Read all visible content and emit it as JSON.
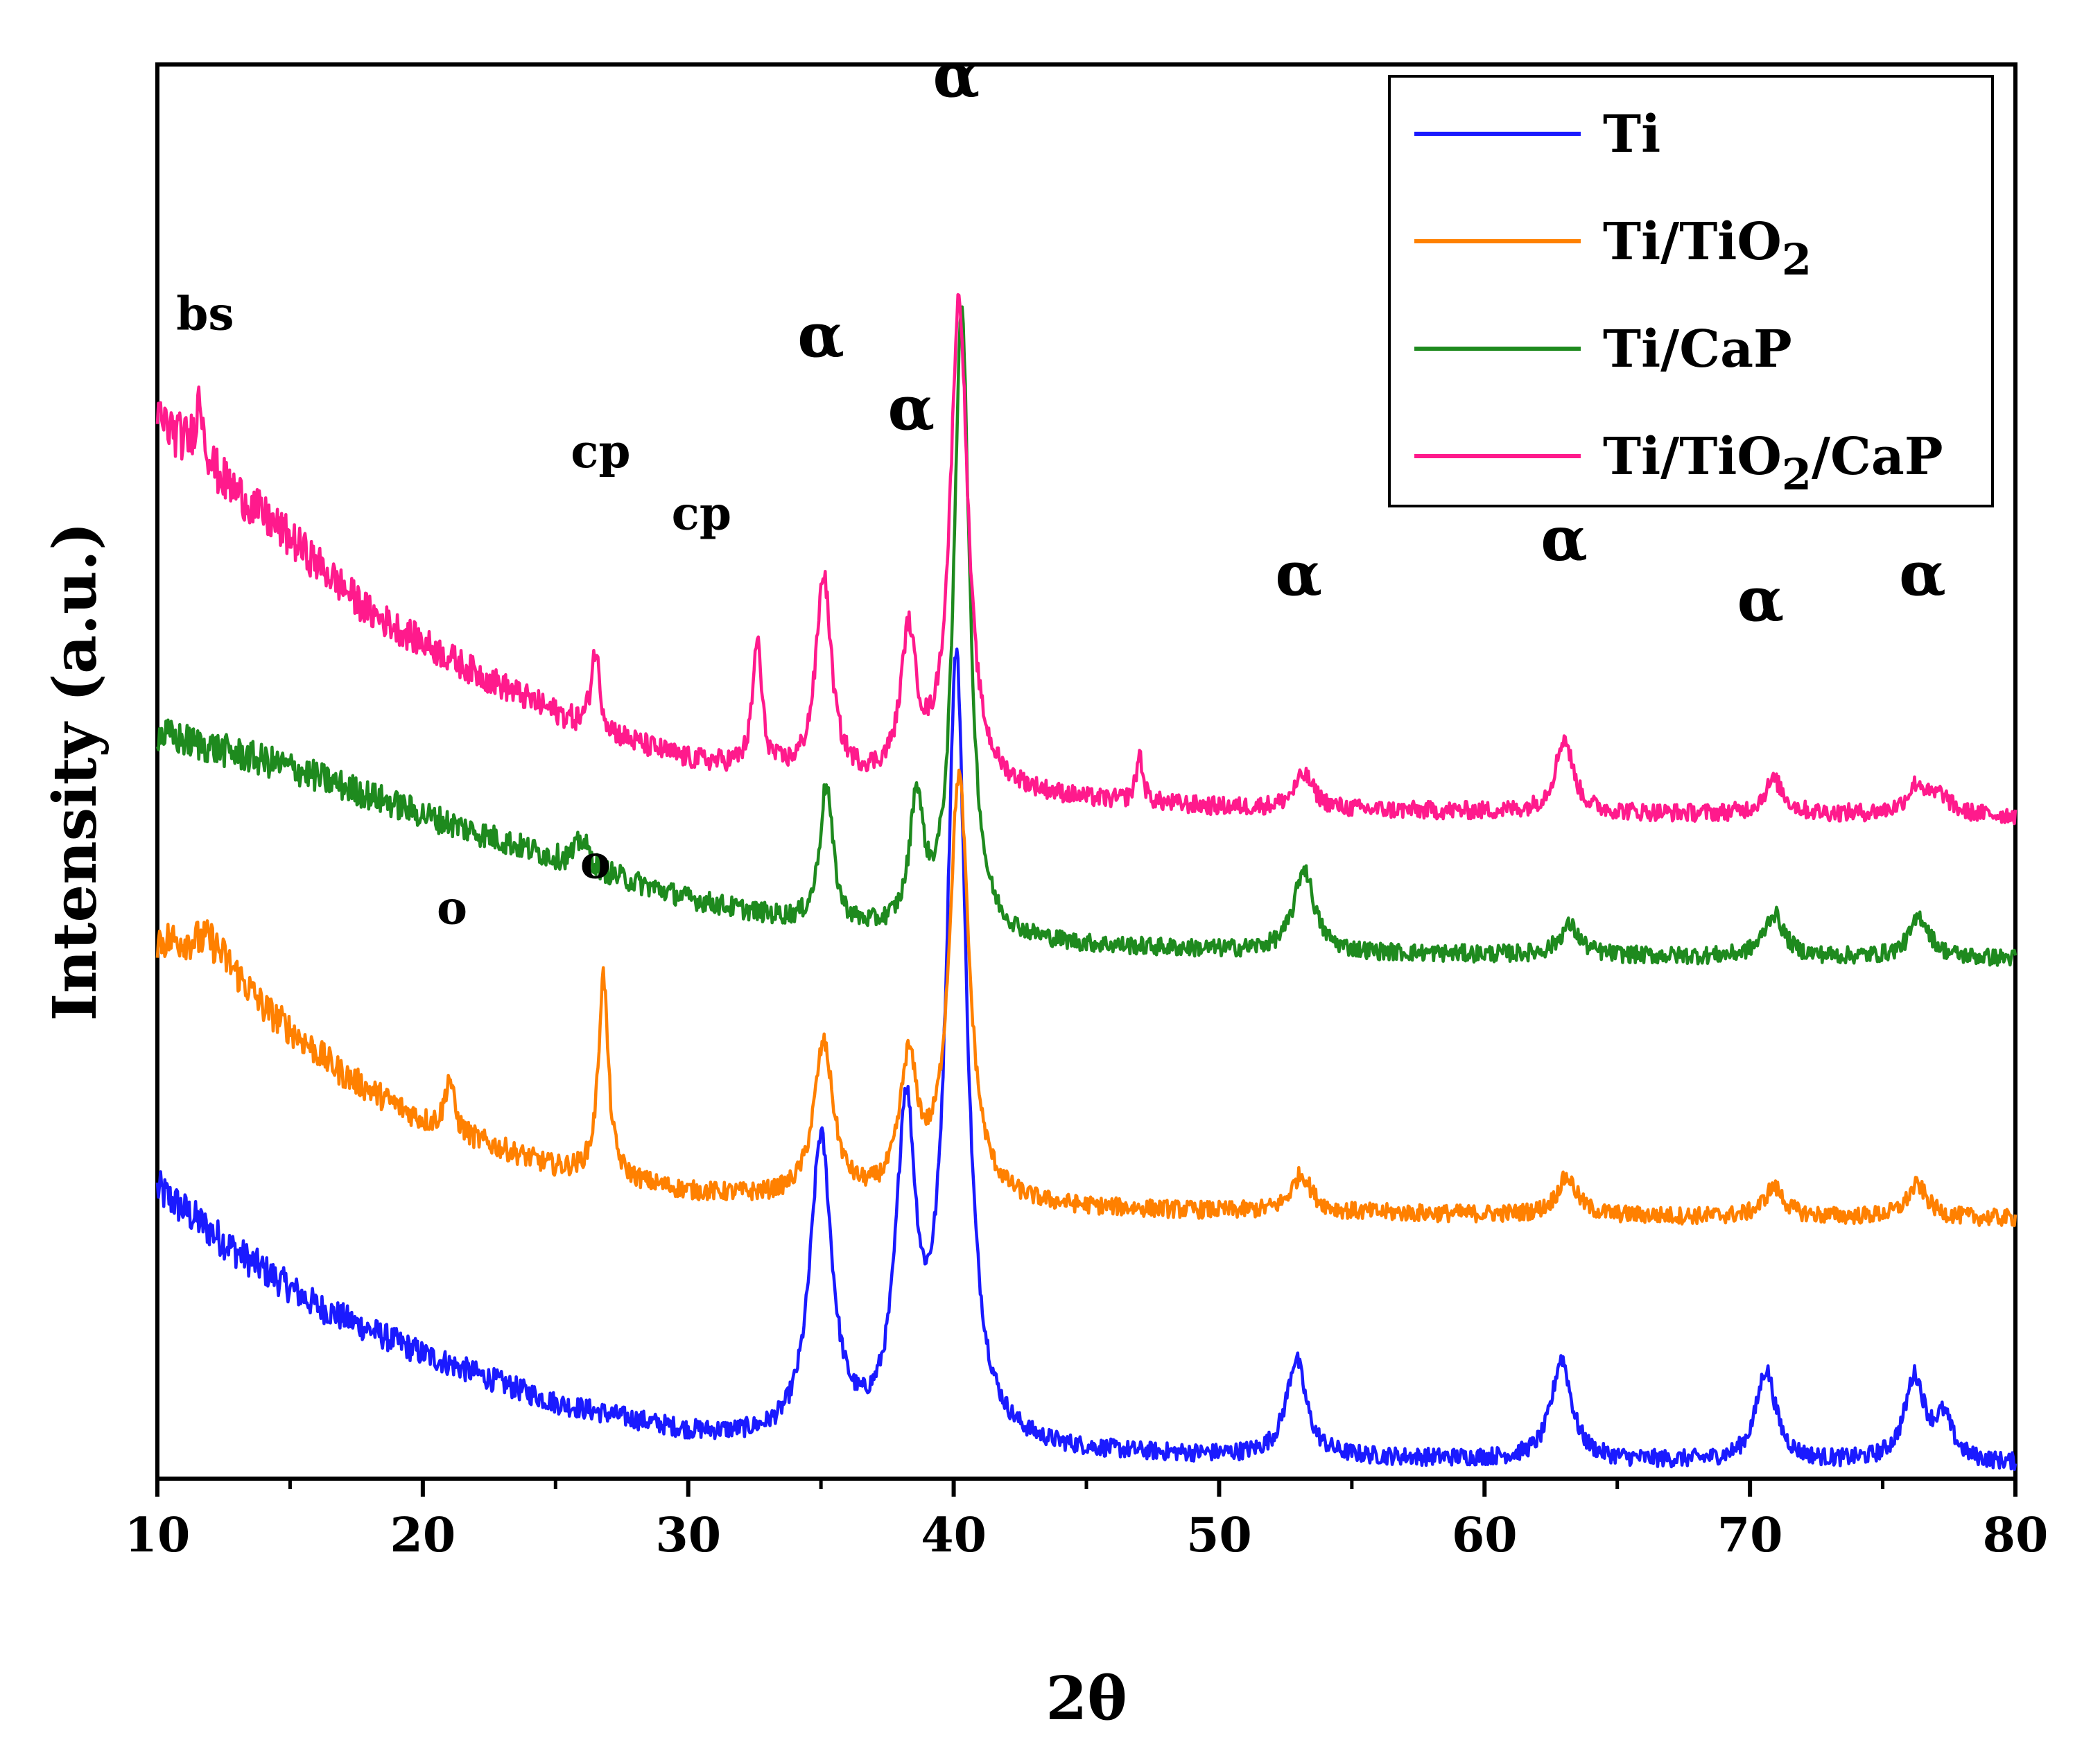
{
  "chart_data": {
    "type": "line",
    "title": "",
    "xlabel": "2θ",
    "ylabel": "Intensity (a.u.)",
    "xlim": [
      10,
      80
    ],
    "ylim": [
      0,
      1050
    ],
    "x_ticks": [
      10,
      20,
      30,
      40,
      50,
      60,
      70,
      80
    ],
    "y_ticks_shown": false,
    "legend_position": "top-right",
    "series": [
      {
        "name": "Ti",
        "color": "#1a1aff",
        "offset": 0,
        "baseline": [
          [
            10,
            215
          ],
          [
            13,
            168
          ],
          [
            16,
            128
          ],
          [
            20,
            92
          ],
          [
            25,
            55
          ],
          [
            30,
            33
          ],
          [
            35,
            22
          ],
          [
            40,
            20
          ],
          [
            45,
            18
          ],
          [
            50,
            16
          ],
          [
            55,
            15
          ],
          [
            60,
            14
          ],
          [
            65,
            13
          ],
          [
            70,
            12
          ],
          [
            75,
            12
          ],
          [
            80,
            11
          ]
        ],
        "peaks": [
          [
            35.0,
            225,
            0.5
          ],
          [
            38.2,
            235,
            0.45
          ],
          [
            40.1,
            580,
            0.45
          ],
          [
            52.9,
            72,
            0.45
          ],
          [
            62.9,
            75,
            0.45
          ],
          [
            70.6,
            68,
            0.45
          ],
          [
            76.2,
            62,
            0.45
          ],
          [
            77.3,
            30,
            0.4
          ]
        ]
      },
      {
        "name": "Ti/TiO2",
        "legend_main": "Ti/TiO",
        "legend_sub": "2",
        "color": "#ff8000",
        "offset": 185,
        "baseline": [
          [
            10,
            215
          ],
          [
            12,
            215
          ],
          [
            14,
            165
          ],
          [
            17,
            115
          ],
          [
            20,
            80
          ],
          [
            25,
            45
          ],
          [
            30,
            27
          ],
          [
            35,
            20
          ],
          [
            40,
            18
          ],
          [
            45,
            15
          ],
          [
            50,
            13
          ],
          [
            55,
            12
          ],
          [
            60,
            11
          ],
          [
            65,
            10
          ],
          [
            70,
            9
          ],
          [
            75,
            9
          ],
          [
            80,
            8
          ]
        ],
        "peaks": [
          [
            21.0,
            40,
            0.2
          ],
          [
            26.8,
            150,
            0.22
          ],
          [
            35.1,
            115,
            0.45
          ],
          [
            38.3,
            98,
            0.4
          ],
          [
            40.2,
            315,
            0.45
          ],
          [
            53.1,
            28,
            0.45
          ],
          [
            63.1,
            28,
            0.45
          ],
          [
            70.9,
            22,
            0.45
          ],
          [
            76.3,
            24,
            0.45
          ]
        ]
      },
      {
        "name": "Ti/CaP",
        "color": "#1e8a1e",
        "offset": 378,
        "baseline": [
          [
            10,
            175
          ],
          [
            15,
            150
          ],
          [
            20,
            115
          ],
          [
            25,
            82
          ],
          [
            30,
            52
          ],
          [
            35,
            30
          ],
          [
            40,
            22
          ],
          [
            45,
            17
          ],
          [
            50,
            14
          ],
          [
            55,
            12
          ],
          [
            60,
            11
          ],
          [
            65,
            10
          ],
          [
            70,
            9
          ],
          [
            75,
            9
          ],
          [
            80,
            8
          ]
        ],
        "peaks": [
          [
            26.0,
            20,
            0.3
          ],
          [
            35.2,
            105,
            0.3
          ],
          [
            38.6,
            95,
            0.3
          ],
          [
            40.3,
            470,
            0.35
          ],
          [
            53.2,
            62,
            0.45
          ],
          [
            63.2,
            22,
            0.45
          ],
          [
            70.9,
            32,
            0.45
          ],
          [
            76.4,
            30,
            0.45
          ]
        ]
      },
      {
        "name": "Ti/TiO2/CaP",
        "legend_main": "Ti/TiO",
        "legend_sub": "2",
        "legend_tail": "/CaP",
        "color": "#ff1a8c",
        "offset": 478,
        "baseline": [
          [
            10,
            310
          ],
          [
            12,
            270
          ],
          [
            15,
            220
          ],
          [
            18,
            165
          ],
          [
            22,
            120
          ],
          [
            26,
            80
          ],
          [
            30,
            55
          ],
          [
            35,
            40
          ],
          [
            40,
            35
          ],
          [
            45,
            25
          ],
          [
            50,
            20
          ],
          [
            55,
            18
          ],
          [
            60,
            17
          ],
          [
            65,
            16
          ],
          [
            70,
            15
          ],
          [
            75,
            15
          ],
          [
            80,
            14
          ]
        ],
        "peaks": [
          [
            11.6,
            45,
            0.2
          ],
          [
            26.5,
            60,
            0.2
          ],
          [
            32.6,
            95,
            0.2
          ],
          [
            35.1,
            150,
            0.35
          ],
          [
            38.3,
            105,
            0.35
          ],
          [
            40.2,
            360,
            0.4
          ],
          [
            47.0,
            35,
            0.15
          ],
          [
            53.2,
            25,
            0.45
          ],
          [
            63.0,
            55,
            0.4
          ],
          [
            70.9,
            25,
            0.45
          ],
          [
            76.3,
            22,
            0.45
          ],
          [
            77.2,
            12,
            0.4
          ]
        ]
      }
    ],
    "annotations": [
      {
        "text": "bs",
        "x": 11.8,
        "y": 853,
        "size": "small"
      },
      {
        "text": "cp",
        "x": 26.7,
        "y": 751,
        "size": "small"
      },
      {
        "text": "cp",
        "x": 30.5,
        "y": 705,
        "size": "small"
      },
      {
        "text": "α",
        "x": 35.0,
        "y": 833,
        "size": "large"
      },
      {
        "text": "α",
        "x": 38.4,
        "y": 779,
        "size": "large"
      },
      {
        "text": "α",
        "x": 40.1,
        "y": 1026,
        "size": "large"
      },
      {
        "text": "α",
        "x": 53.0,
        "y": 656,
        "size": "large"
      },
      {
        "text": "α",
        "x": 63.0,
        "y": 682,
        "size": "large"
      },
      {
        "text": "α",
        "x": 70.4,
        "y": 637,
        "size": "large"
      },
      {
        "text": "α",
        "x": 76.5,
        "y": 656,
        "size": "large"
      },
      {
        "text": "o",
        "x": 21.1,
        "y": 412,
        "size": "small"
      },
      {
        "text": "o",
        "x": 26.5,
        "y": 446,
        "size": "small"
      }
    ]
  }
}
